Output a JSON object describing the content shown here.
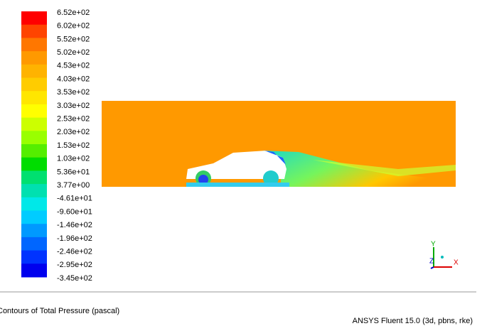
{
  "legend": {
    "labels": [
      "6.52e+02",
      "6.02e+02",
      "5.52e+02",
      "5.02e+02",
      "4.53e+02",
      "4.03e+02",
      "3.53e+02",
      "3.03e+02",
      "2.53e+02",
      "2.03e+02",
      "1.53e+02",
      "1.03e+02",
      "5.36e+01",
      "3.77e+00",
      "-4.61e+01",
      "-9.60e+01",
      "-1.46e+02",
      "-1.96e+02",
      "-2.46e+02",
      "-2.95e+02",
      "-3.45e+02"
    ],
    "colors": [
      "#ff0000",
      "#ff4400",
      "#ff7700",
      "#ff9900",
      "#ffb300",
      "#ffcc00",
      "#ffe600",
      "#ffff00",
      "#ccff00",
      "#99ff00",
      "#55ee00",
      "#00dd00",
      "#00e070",
      "#00e0b0",
      "#00e8e8",
      "#00ccff",
      "#0099ff",
      "#0066ff",
      "#0033ff",
      "#0000ee"
    ]
  },
  "axes": {
    "y": "Y",
    "z": "Z",
    "x": "X"
  },
  "caption": "Contours of Total Pressure (pascal)",
  "footer": "ANSYS Fluent 15.0 (3d, pbns, rke)"
}
